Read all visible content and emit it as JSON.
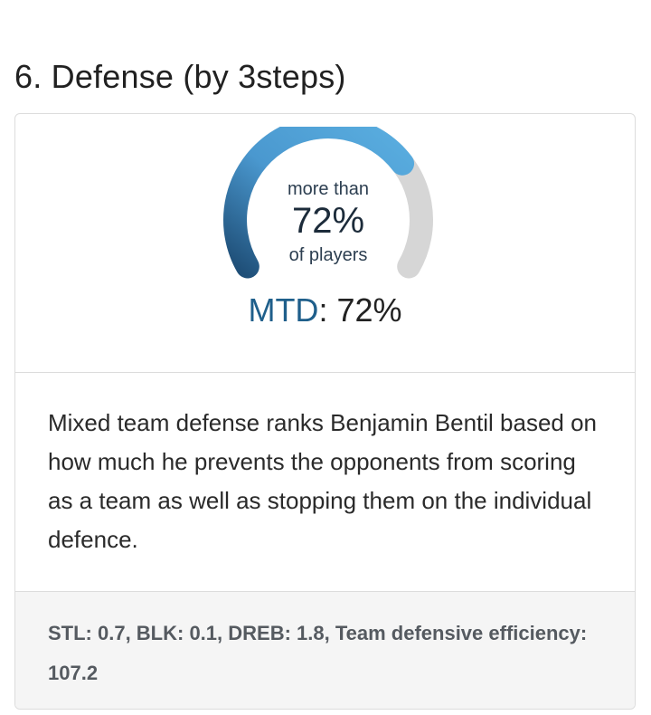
{
  "section": {
    "title": "6. Defense (by 3steps)"
  },
  "gauge": {
    "prefix": "more than",
    "value_text": "72%",
    "suffix": "of players",
    "percent": 0.72,
    "colors": {
      "fill_start": "#5aaee0",
      "fill_end": "#1f4f78",
      "track": "#d6d6d6"
    }
  },
  "metric": {
    "abbr": "MTD",
    "separator": ":",
    "value": "72%"
  },
  "description": "Mixed team defense ranks Benjamin Bentil based on how much he prevents the opponents from scoring as a team as well as stopping them on the individual defence.",
  "stats": "STL: 0.7, BLK: 0.1, DREB: 1.8, Team defensive efficiency: 107.2"
}
